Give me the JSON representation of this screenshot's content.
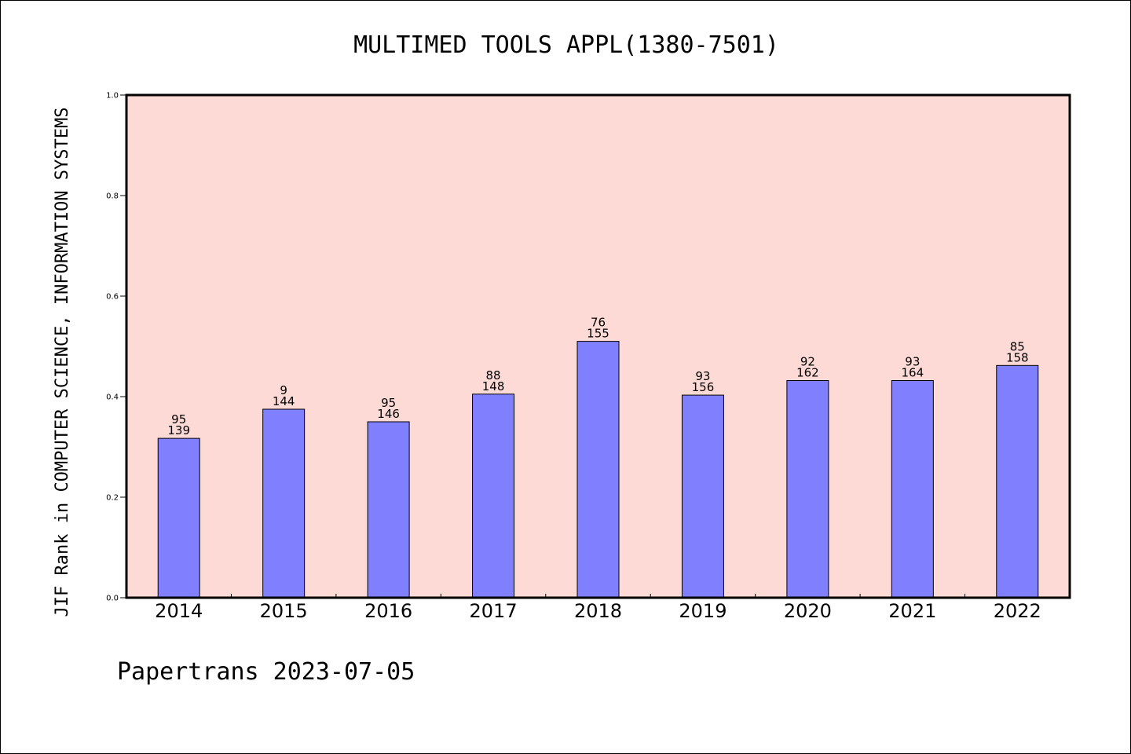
{
  "chart_data": {
    "type": "bar",
    "title": "MULTIMED TOOLS APPL(1380-7501)",
    "ylabel": "JIF Rank in COMPUTER SCIENCE, INFORMATION SYSTEMS",
    "xlabel": "",
    "ylim": [
      0,
      1.0
    ],
    "yticks": [
      "0.0",
      "0.2",
      "0.4",
      "0.6",
      "0.8",
      "1.0"
    ],
    "categories": [
      "2014",
      "2015",
      "2016",
      "2017",
      "2018",
      "2019",
      "2020",
      "2021",
      "2022"
    ],
    "values": [
      0.317,
      0.375,
      0.35,
      0.405,
      0.51,
      0.403,
      0.432,
      0.432,
      0.462
    ],
    "rank": [
      "95",
      "9",
      "95",
      "88",
      "76",
      "93",
      "92",
      "93",
      "85"
    ],
    "total": [
      "139",
      "144",
      "146",
      "148",
      "155",
      "156",
      "162",
      "164",
      "158"
    ],
    "grid": false,
    "colors": {
      "plot_bg": "#fddad6",
      "bar": "#8080ff",
      "bar_edge": "#000000"
    }
  },
  "footer": "Papertrans 2023-07-05"
}
